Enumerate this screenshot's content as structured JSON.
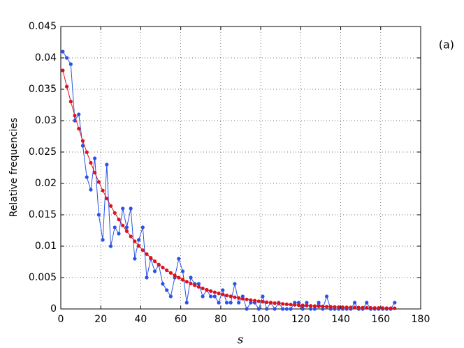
{
  "chart_data": {
    "type": "line",
    "annotation": "(a)",
    "x_label": "s",
    "y_label": "Relative frequencies",
    "x": [
      1,
      3,
      5,
      7,
      9,
      11,
      13,
      15,
      17,
      19,
      21,
      23,
      25,
      27,
      29,
      31,
      33,
      35,
      37,
      39,
      41,
      43,
      45,
      47,
      49,
      51,
      53,
      55,
      57,
      59,
      61,
      63,
      65,
      67,
      69,
      71,
      73,
      75,
      77,
      79,
      81,
      83,
      85,
      87,
      89,
      91,
      93,
      95,
      97,
      99,
      101,
      103,
      105,
      107,
      109,
      111,
      113,
      115,
      117,
      119,
      121,
      123,
      125,
      127,
      129,
      131,
      133,
      135,
      137,
      139,
      141,
      143,
      145,
      147,
      149,
      151,
      153,
      155,
      157,
      159,
      161,
      163,
      165,
      167
    ],
    "series": [
      {
        "color": "#2a52e6",
        "values": [
          0.041,
          0.04,
          0.039,
          0.03,
          0.031,
          0.026,
          0.021,
          0.019,
          0.024,
          0.015,
          0.011,
          0.023,
          0.01,
          0.013,
          0.012,
          0.016,
          0.013,
          0.016,
          0.008,
          0.011,
          0.013,
          0.005,
          0.008,
          0.006,
          0.007,
          0.004,
          0.003,
          0.002,
          0.005,
          0.008,
          0.006,
          0.001,
          0.005,
          0.004,
          0.004,
          0.002,
          0.003,
          0.002,
          0.002,
          0.001,
          0.003,
          0.001,
          0.001,
          0.004,
          0.001,
          0.002,
          0,
          0.001,
          0.001,
          0,
          0.002,
          0,
          0.001,
          0,
          0.001,
          0,
          0,
          0,
          0.001,
          0.001,
          0,
          0.001,
          0,
          0,
          0.001,
          0,
          0.002,
          0,
          0,
          0,
          0,
          0,
          0,
          0.001,
          0,
          0,
          0.001,
          0,
          0,
          0,
          0,
          0,
          0,
          0.001
        ]
      },
      {
        "color": "#d9141e",
        "values": [
          0.038,
          0.03543,
          0.03304,
          0.0308,
          0.02872,
          0.02678,
          0.02497,
          0.02328,
          0.02171,
          0.02024,
          0.01887,
          0.0176,
          0.01641,
          0.0153,
          0.01426,
          0.0133,
          0.0124,
          0.01156,
          0.01078,
          0.01005,
          0.00937,
          0.00874,
          0.00815,
          0.0076,
          0.00708,
          0.0066,
          0.00616,
          0.00574,
          0.00535,
          0.00499,
          0.00465,
          0.00434,
          0.00405,
          0.00377,
          0.00352,
          0.00328,
          0.00306,
          0.00285,
          0.00266,
          0.00248,
          0.00231,
          0.00215,
          0.00201,
          0.00187,
          0.00175,
          0.00163,
          0.00152,
          0.00141,
          0.00132,
          0.00123,
          0.00115,
          0.00107,
          0.001,
          0.00093,
          0.00087,
          0.00081,
          0.00075,
          0.0007,
          0.00065,
          0.00061,
          0.00057,
          0.00053,
          0.00049,
          0.00046,
          0.00043,
          0.0004,
          0.00037,
          0.00035,
          0.00032,
          0.0003,
          0.00028,
          0.00026,
          0.00024,
          0.00023,
          0.00021,
          0.0002,
          0.00018,
          0.00017,
          0.00016,
          0.00015,
          0.00014,
          0.00013,
          0.00012,
          0.00011
        ]
      }
    ],
    "xlim": [
      0,
      180
    ],
    "xticks": [
      0,
      20,
      40,
      60,
      80,
      100,
      120,
      140,
      160,
      180
    ],
    "ylim": [
      0,
      0.045
    ],
    "yticks": [
      0,
      0.005,
      0.01,
      0.015,
      0.02,
      0.025,
      0.03,
      0.035,
      0.04,
      0.045
    ],
    "grid": true
  }
}
